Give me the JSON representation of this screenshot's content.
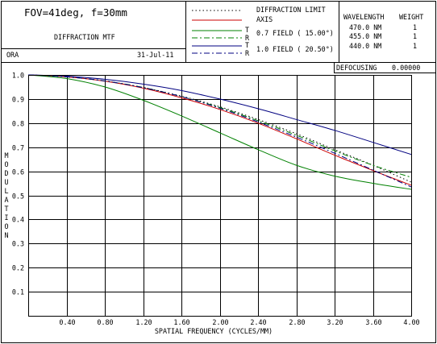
{
  "header": {
    "title": "FOV=41deg, f=30mm",
    "subtitle": "DIFFRACTION MTF",
    "program": "ORA",
    "date": "31-Jul-11",
    "defocusing_label": "DEFOCUSING",
    "defocusing_value": "0.00000"
  },
  "legend": {
    "entries": [
      {
        "label": "DIFFRACTION LIMIT",
        "color": "#000000",
        "dash": "dotted",
        "tr": false
      },
      {
        "label": "AXIS",
        "color": "#cc0000",
        "dash": "solid",
        "tr": false
      },
      {
        "label": "0.7 FIELD ( 15.00°)",
        "color": "#008000",
        "dash": "dashdot",
        "tr": true
      },
      {
        "label": "1.0 FIELD ( 20.50°)",
        "color": "#000080",
        "dash": "dashdot",
        "tr": true
      }
    ],
    "t_mark": "T",
    "r_mark": "R"
  },
  "wavelengths": {
    "header_wl": "WAVELENGTH",
    "header_wt": "WEIGHT",
    "rows": [
      {
        "wl": "470.0 NM",
        "wt": "1"
      },
      {
        "wl": "455.0 NM",
        "wt": "1"
      },
      {
        "wl": "440.0 NM",
        "wt": "1"
      }
    ]
  },
  "chart_data": {
    "type": "line",
    "xlabel": "SPATIAL FREQUENCY (CYCLES/MM)",
    "ylabel": "MODULATION",
    "xlim": [
      0,
      4.0
    ],
    "ylim": [
      0,
      1.0
    ],
    "x_ticks": [
      "0.40",
      "0.80",
      "1.20",
      "1.60",
      "2.00",
      "2.40",
      "2.80",
      "3.20",
      "3.60",
      "4.00"
    ],
    "y_ticks": [
      "0.1",
      "0.2",
      "0.3",
      "0.4",
      "0.5",
      "0.6",
      "0.7",
      "0.8",
      "0.9",
      "1.0"
    ],
    "x": [
      0,
      0.4,
      0.8,
      1.2,
      1.6,
      2.0,
      2.4,
      2.8,
      3.2,
      3.6,
      4.0
    ],
    "series": [
      {
        "name": "DIFFRACTION LIMIT",
        "color": "#000000",
        "dash": "dotted",
        "values": [
          1.0,
          0.992,
          0.975,
          0.948,
          0.912,
          0.868,
          0.815,
          0.756,
          0.69,
          0.625,
          0.555
        ]
      },
      {
        "name": "AXIS",
        "color": "#cc0000",
        "dash": "solid",
        "values": [
          1.0,
          0.992,
          0.974,
          0.945,
          0.905,
          0.857,
          0.8,
          0.735,
          0.667,
          0.603,
          0.542
        ]
      },
      {
        "name": "0.7 FIELD T",
        "color": "#008000",
        "dash": "solid",
        "values": [
          1.0,
          0.985,
          0.95,
          0.895,
          0.83,
          0.76,
          0.69,
          0.625,
          0.58,
          0.55,
          0.525
        ]
      },
      {
        "name": "0.7 FIELD R",
        "color": "#008000",
        "dash": "dashdot",
        "values": [
          1.0,
          0.992,
          0.975,
          0.948,
          0.91,
          0.865,
          0.81,
          0.75,
          0.685,
          0.625,
          0.575
        ]
      },
      {
        "name": "1.0 FIELD T",
        "color": "#000080",
        "dash": "solid",
        "values": [
          1.0,
          0.995,
          0.982,
          0.962,
          0.935,
          0.9,
          0.86,
          0.815,
          0.77,
          0.72,
          0.67
        ]
      },
      {
        "name": "1.0 FIELD R",
        "color": "#000080",
        "dash": "dashdot",
        "values": [
          1.0,
          0.992,
          0.975,
          0.947,
          0.91,
          0.862,
          0.805,
          0.742,
          0.675,
          0.605,
          0.535
        ]
      }
    ]
  }
}
